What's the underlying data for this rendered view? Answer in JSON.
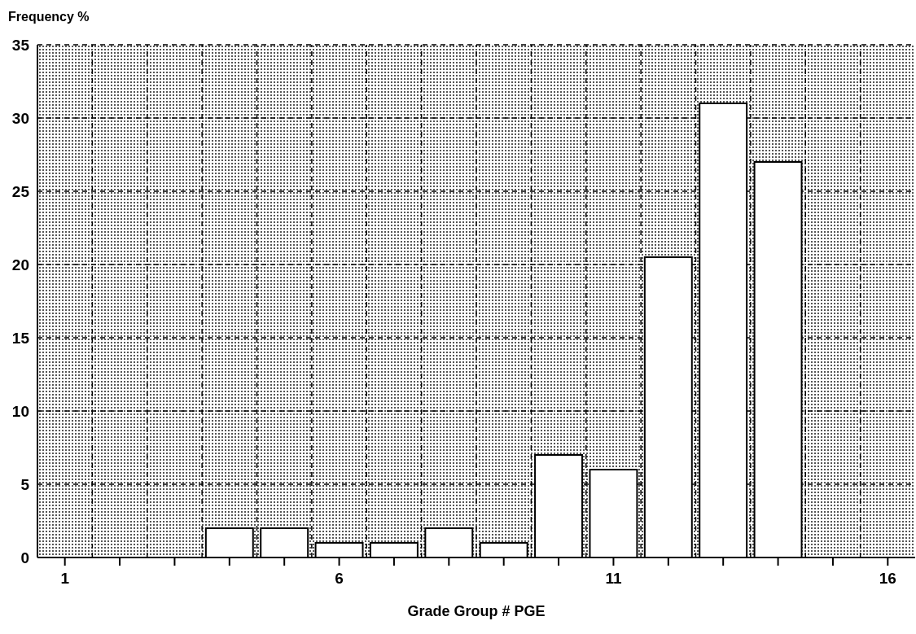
{
  "chart_data": {
    "type": "bar",
    "ylabel": "Frequency %",
    "xlabel": "Grade Group # PGE",
    "x": [
      4,
      5,
      6,
      7,
      8,
      9,
      10,
      11,
      12,
      13,
      14
    ],
    "values": [
      2,
      2,
      1,
      1,
      2,
      1,
      7,
      6,
      20.5,
      31,
      27
    ],
    "color": "#ffffff",
    "xlim": [
      0.5,
      16.5
    ],
    "xticks": [
      1,
      {
        "value": 2,
        "label": null
      },
      {
        "value": 3,
        "label": null
      },
      {
        "value": 4,
        "label": null
      },
      {
        "value": 5,
        "label": null
      },
      6,
      {
        "value": 7,
        "label": null
      },
      {
        "value": 8,
        "label": null
      },
      {
        "value": 9,
        "label": null
      },
      {
        "value": 10,
        "label": null
      },
      11,
      {
        "value": 12,
        "label": null
      },
      {
        "value": 13,
        "label": null
      },
      {
        "value": 14,
        "label": null
      },
      {
        "value": 15,
        "label": null
      },
      16
    ],
    "ylim": [
      0,
      35
    ],
    "yticks": [
      0,
      5,
      10,
      15,
      20,
      25,
      30,
      35
    ],
    "grid": true
  }
}
